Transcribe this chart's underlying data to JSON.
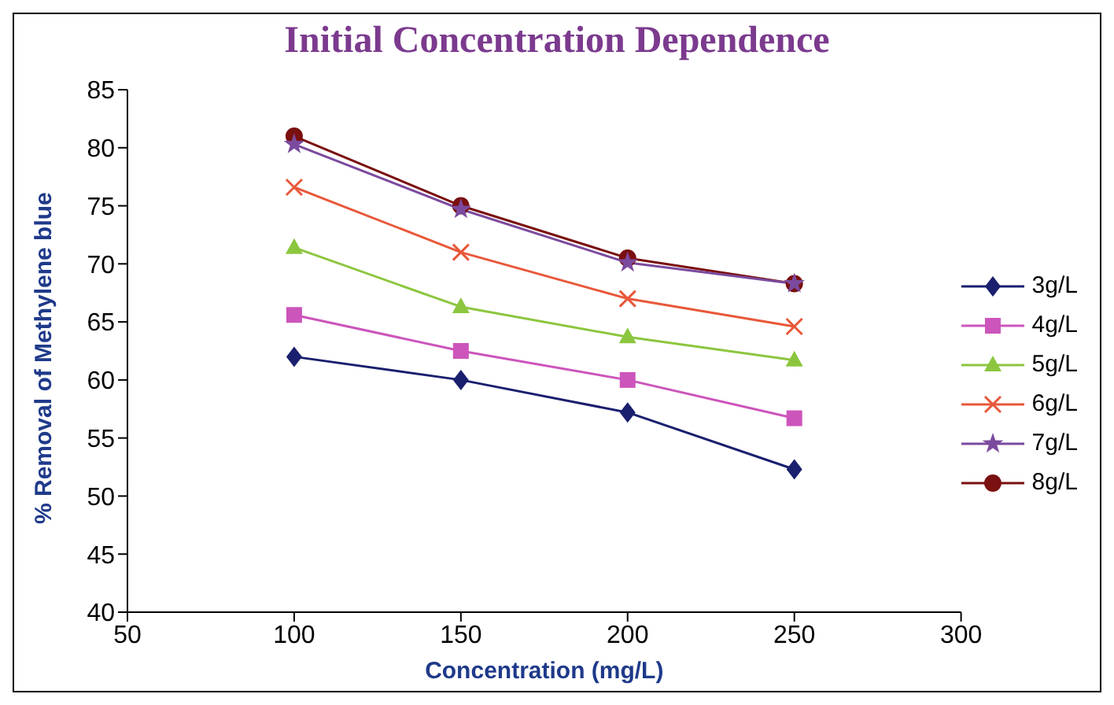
{
  "chart_data": {
    "type": "line",
    "title": "Initial Concentration Dependence",
    "xlabel": "Concentration (mg/L)",
    "ylabel": "% Removal of Methylene blue",
    "x": [
      100,
      150,
      200,
      250
    ],
    "xlim": [
      50,
      300
    ],
    "xticks": [
      50,
      100,
      150,
      200,
      250,
      300
    ],
    "ylim": [
      40,
      85
    ],
    "yticks": [
      40,
      45,
      50,
      55,
      60,
      65,
      70,
      75,
      80,
      85
    ],
    "grid": false,
    "legend": "right",
    "line_style": "solid",
    "series": [
      {
        "name": "3g/L",
        "color": "#1a1f6e",
        "marker": "diamond",
        "values": [
          62,
          60,
          57.2,
          52.3
        ]
      },
      {
        "name": "4g/L",
        "color": "#cc55bb",
        "marker": "square",
        "values": [
          65.6,
          62.5,
          60,
          56.7
        ]
      },
      {
        "name": "5g/L",
        "color": "#8cc63f",
        "marker": "triangle",
        "values": [
          71.4,
          66.3,
          63.7,
          61.7
        ]
      },
      {
        "name": "6g/L",
        "color": "#e8583a",
        "marker": "cross",
        "values": [
          76.6,
          71,
          67,
          64.6
        ]
      },
      {
        "name": "7g/L",
        "color": "#7b4a9e",
        "marker": "star",
        "values": [
          80.3,
          74.7,
          70.1,
          68.3
        ]
      },
      {
        "name": "8g/L",
        "color": "#7a1010",
        "marker": "circle",
        "values": [
          81,
          75,
          70.5,
          68.3
        ]
      }
    ]
  }
}
